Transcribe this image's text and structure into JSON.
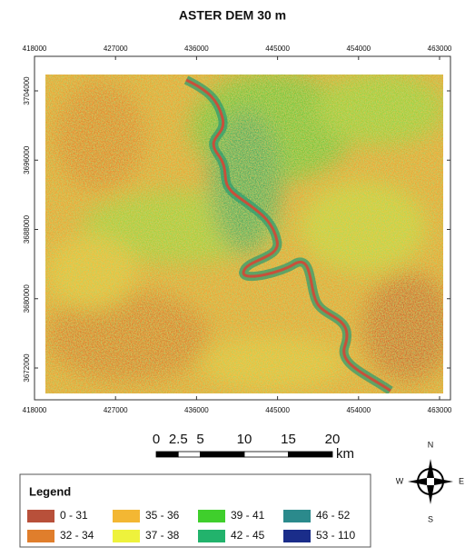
{
  "map": {
    "title": "ASTER DEM 30 m",
    "xticks": [
      418000,
      427000,
      436000,
      445000,
      454000,
      463000
    ],
    "xlim": [
      418000,
      463000
    ],
    "yticks": [
      3704000,
      3696000,
      3688000,
      3680000,
      3672000
    ],
    "ylim": [
      3672000,
      3704000
    ],
    "scale_bar": {
      "ticks": [
        0,
        2.5,
        5,
        10,
        15,
        20
      ],
      "unit": "km"
    },
    "compass": {
      "north": "N",
      "south": "S",
      "west": "W",
      "east": "E"
    },
    "legend": {
      "title": "Legend",
      "items": [
        {
          "label": "0 - 31",
          "color": "#b8503a"
        },
        {
          "label": "32 - 34",
          "color": "#e07e2c"
        },
        {
          "label": "35 - 36",
          "color": "#f3b733"
        },
        {
          "label": "37 - 38",
          "color": "#eef23c"
        },
        {
          "label": "39 - 41",
          "color": "#3fcf2c"
        },
        {
          "label": "42 - 45",
          "color": "#22b36c"
        },
        {
          "label": "46 - 52",
          "color": "#2b8a8c"
        },
        {
          "label": "53 - 110",
          "color": "#1a2d8a"
        }
      ]
    }
  }
}
